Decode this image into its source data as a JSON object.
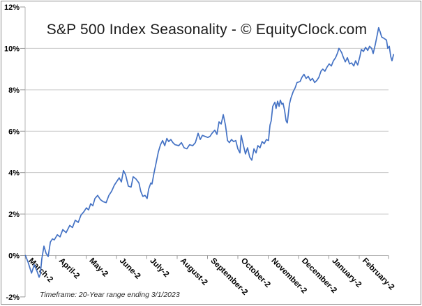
{
  "chart_data": {
    "type": "line",
    "title": "S&P 500 Index Seasonality - © EquityClock.com",
    "footnote": "Timeframe: 20-Year range ending 3/1/2023",
    "x_tick_labels": [
      "March-2",
      "April-2",
      "May-2",
      "June-2",
      "July-2",
      "August-2",
      "September-2",
      "October-2",
      "November-2",
      "December-2",
      "January-2",
      "February-2"
    ],
    "y_tick_labels": [
      "12%",
      "10%",
      "8%",
      "6%",
      "4%",
      "2%",
      "0%",
      "-2%"
    ],
    "y_tick_values": [
      12,
      10,
      8,
      6,
      4,
      2,
      0,
      -2
    ],
    "y_grid_values": [
      10,
      8,
      6,
      4,
      2
    ],
    "ylim": [
      -2,
      12
    ],
    "xlim_months": [
      0,
      12
    ],
    "grid": true,
    "legend_position": "none",
    "ylabel": "",
    "xlabel": "",
    "series": [
      {
        "color": "#4472C4",
        "points": [
          [
            0.0,
            0.0
          ],
          [
            0.08,
            -0.3
          ],
          [
            0.2,
            -0.85
          ],
          [
            0.29,
            -0.45
          ],
          [
            0.38,
            -0.75
          ],
          [
            0.45,
            -1.05
          ],
          [
            0.49,
            -0.9
          ],
          [
            0.54,
            -0.15
          ],
          [
            0.61,
            0.45
          ],
          [
            0.68,
            0.1
          ],
          [
            0.75,
            -0.05
          ],
          [
            0.82,
            0.65
          ],
          [
            0.89,
            0.8
          ],
          [
            0.95,
            0.75
          ],
          [
            1.05,
            1.0
          ],
          [
            1.14,
            0.9
          ],
          [
            1.23,
            1.25
          ],
          [
            1.34,
            1.1
          ],
          [
            1.46,
            1.45
          ],
          [
            1.55,
            1.35
          ],
          [
            1.64,
            1.7
          ],
          [
            1.74,
            1.6
          ],
          [
            1.83,
            1.95
          ],
          [
            1.92,
            2.1
          ],
          [
            2.01,
            2.3
          ],
          [
            2.08,
            2.2
          ],
          [
            2.15,
            2.5
          ],
          [
            2.22,
            2.4
          ],
          [
            2.29,
            2.75
          ],
          [
            2.38,
            2.9
          ],
          [
            2.47,
            2.7
          ],
          [
            2.56,
            2.6
          ],
          [
            2.66,
            2.55
          ],
          [
            2.75,
            2.9
          ],
          [
            2.84,
            3.1
          ],
          [
            2.93,
            3.4
          ],
          [
            3.02,
            3.6
          ],
          [
            3.09,
            3.75
          ],
          [
            3.16,
            3.55
          ],
          [
            3.23,
            4.1
          ],
          [
            3.3,
            3.9
          ],
          [
            3.39,
            3.35
          ],
          [
            3.48,
            3.3
          ],
          [
            3.55,
            3.8
          ],
          [
            3.64,
            3.7
          ],
          [
            3.74,
            3.5
          ],
          [
            3.8,
            3.1
          ],
          [
            3.87,
            2.85
          ],
          [
            3.94,
            2.9
          ],
          [
            4.01,
            2.75
          ],
          [
            4.06,
            3.2
          ],
          [
            4.13,
            3.5
          ],
          [
            4.17,
            3.45
          ],
          [
            4.24,
            4.0
          ],
          [
            4.31,
            4.5
          ],
          [
            4.38,
            5.0
          ],
          [
            4.45,
            5.35
          ],
          [
            4.52,
            5.55
          ],
          [
            4.59,
            5.3
          ],
          [
            4.66,
            5.65
          ],
          [
            4.72,
            5.5
          ],
          [
            4.79,
            5.6
          ],
          [
            4.86,
            5.45
          ],
          [
            4.93,
            5.35
          ],
          [
            5.05,
            5.3
          ],
          [
            5.14,
            5.45
          ],
          [
            5.23,
            5.2
          ],
          [
            5.32,
            5.15
          ],
          [
            5.41,
            5.35
          ],
          [
            5.51,
            5.3
          ],
          [
            5.6,
            5.45
          ],
          [
            5.69,
            5.9
          ],
          [
            5.76,
            5.6
          ],
          [
            5.83,
            5.8
          ],
          [
            5.92,
            5.75
          ],
          [
            6.01,
            5.7
          ],
          [
            6.08,
            5.75
          ],
          [
            6.15,
            5.9
          ],
          [
            6.24,
            6.05
          ],
          [
            6.31,
            5.85
          ],
          [
            6.38,
            6.45
          ],
          [
            6.45,
            6.35
          ],
          [
            6.52,
            6.8
          ],
          [
            6.59,
            6.3
          ],
          [
            6.66,
            5.55
          ],
          [
            6.72,
            5.45
          ],
          [
            6.79,
            5.6
          ],
          [
            6.86,
            5.5
          ],
          [
            6.93,
            5.55
          ],
          [
            7.0,
            5.15
          ],
          [
            7.07,
            4.95
          ],
          [
            7.11,
            5.8
          ],
          [
            7.18,
            5.35
          ],
          [
            7.25,
            4.9
          ],
          [
            7.32,
            5.2
          ],
          [
            7.39,
            4.75
          ],
          [
            7.46,
            4.6
          ],
          [
            7.53,
            5.15
          ],
          [
            7.6,
            4.95
          ],
          [
            7.66,
            5.3
          ],
          [
            7.73,
            5.2
          ],
          [
            7.8,
            5.5
          ],
          [
            7.87,
            5.4
          ],
          [
            7.94,
            5.6
          ],
          [
            8.01,
            5.55
          ],
          [
            8.06,
            6.3
          ],
          [
            8.1,
            6.5
          ],
          [
            8.15,
            7.2
          ],
          [
            8.22,
            7.4
          ],
          [
            8.26,
            7.1
          ],
          [
            8.31,
            7.45
          ],
          [
            8.36,
            7.2
          ],
          [
            8.4,
            7.5
          ],
          [
            8.45,
            7.3
          ],
          [
            8.49,
            7.35
          ],
          [
            8.54,
            7.0
          ],
          [
            8.59,
            6.5
          ],
          [
            8.63,
            6.4
          ],
          [
            8.7,
            7.3
          ],
          [
            8.75,
            7.6
          ],
          [
            8.82,
            7.9
          ],
          [
            8.89,
            8.1
          ],
          [
            8.95,
            8.35
          ],
          [
            9.05,
            8.4
          ],
          [
            9.11,
            8.6
          ],
          [
            9.18,
            8.75
          ],
          [
            9.25,
            8.55
          ],
          [
            9.32,
            8.65
          ],
          [
            9.39,
            8.45
          ],
          [
            9.46,
            8.55
          ],
          [
            9.53,
            8.35
          ],
          [
            9.6,
            8.45
          ],
          [
            9.67,
            8.6
          ],
          [
            9.74,
            8.9
          ],
          [
            9.8,
            9.0
          ],
          [
            9.87,
            8.9
          ],
          [
            9.94,
            9.1
          ],
          [
            10.01,
            9.25
          ],
          [
            10.08,
            9.15
          ],
          [
            10.15,
            9.4
          ],
          [
            10.22,
            9.55
          ],
          [
            10.29,
            9.8
          ],
          [
            10.33,
            10.0
          ],
          [
            10.38,
            9.9
          ],
          [
            10.42,
            9.8
          ],
          [
            10.47,
            9.6
          ],
          [
            10.54,
            9.35
          ],
          [
            10.61,
            9.55
          ],
          [
            10.68,
            9.25
          ],
          [
            10.75,
            9.3
          ],
          [
            10.82,
            9.15
          ],
          [
            10.88,
            9.4
          ],
          [
            10.95,
            9.2
          ],
          [
            11.02,
            9.6
          ],
          [
            11.07,
            9.95
          ],
          [
            11.14,
            9.85
          ],
          [
            11.21,
            10.05
          ],
          [
            11.28,
            9.9
          ],
          [
            11.34,
            10.1
          ],
          [
            11.41,
            10.0
          ],
          [
            11.46,
            9.75
          ],
          [
            11.53,
            10.2
          ],
          [
            11.6,
            10.7
          ],
          [
            11.64,
            11.0
          ],
          [
            11.69,
            10.8
          ],
          [
            11.74,
            10.55
          ],
          [
            11.8,
            10.5
          ],
          [
            11.85,
            10.45
          ],
          [
            11.9,
            10.4
          ],
          [
            11.94,
            10.0
          ],
          [
            11.99,
            10.1
          ],
          [
            12.04,
            9.6
          ],
          [
            12.08,
            9.4
          ],
          [
            12.13,
            9.7
          ]
        ]
      }
    ]
  },
  "colors": {
    "line": "#4472C4",
    "grid": "#c9c9c9",
    "axis": "#b5b5b5",
    "tick": "#999999",
    "label_text": "#000000",
    "title_text": "#1b1b1b",
    "footnote_text": "#2b2b2b",
    "border": "#8c8c8c",
    "background": "#ffffff"
  }
}
